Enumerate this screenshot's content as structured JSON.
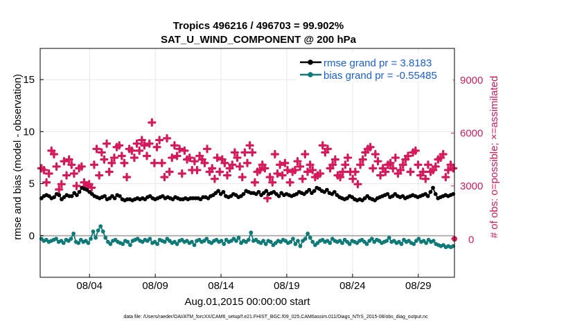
{
  "chart_data": {
    "type": "line",
    "title": "Tropics 496216 / 496703 = 99.902%",
    "subtitle": "SAT_U_WIND_COMPONENT @ 200 hPa",
    "xlabel": "Aug.01,2015 00:00:00 start",
    "ylabel": "rmse and bias (model - observation)",
    "y2label": "# of obs: o=possible; ×=assimilated",
    "footer": "data file: /Users/raeder/DAI/ATM_forcXX/CAM6_setup/f.e21.FHIST_BGC.f09_025.CAM6assim.011/Diags_NTrS_2015-08/obs_diag_output.nc",
    "xlim": [
      0.25,
      31.75
    ],
    "ylim": [
      -4,
      18
    ],
    "y2lim": [
      -2181.8,
      10800
    ],
    "grid": true,
    "legend_position": "top-right",
    "x_ticks": [
      {
        "value": 4,
        "label": "08/04"
      },
      {
        "value": 9,
        "label": "08/09"
      },
      {
        "value": 14,
        "label": "08/14"
      },
      {
        "value": 19,
        "label": "08/19"
      },
      {
        "value": 24,
        "label": "08/24"
      },
      {
        "value": 29,
        "label": "08/29"
      }
    ],
    "y_ticks": [
      {
        "value": 0,
        "label": "0"
      },
      {
        "value": 5,
        "label": "5"
      },
      {
        "value": 10,
        "label": "10"
      },
      {
        "value": 15,
        "label": "15"
      }
    ],
    "y2_ticks": [
      {
        "value": 0,
        "label": "0"
      },
      {
        "value": 3000,
        "label": "3000"
      },
      {
        "value": 6000,
        "label": "6000"
      },
      {
        "value": 9000,
        "label": "9000"
      }
    ],
    "series": [
      {
        "name": "rmse grand pr = 3.8183",
        "color": "#000000",
        "axis": "left",
        "values": [
          3.6,
          3.8,
          3.9,
          3.8,
          3.6,
          3.7,
          4.0,
          3.9,
          3.5,
          3.7,
          3.9,
          3.8,
          3.8,
          4.1,
          3.9,
          4.2,
          4.6,
          4.5,
          4.4,
          4.2,
          4.0,
          3.8,
          3.7,
          3.6,
          3.7,
          3.8,
          3.5,
          3.6,
          3.8,
          3.6,
          3.9,
          3.8,
          3.5,
          3.4,
          3.5,
          3.5,
          3.4,
          3.5,
          3.6,
          3.5,
          3.6,
          3.5,
          3.7,
          3.8,
          3.6,
          3.5,
          3.6,
          3.7,
          3.8,
          3.6,
          3.7,
          3.6,
          3.5,
          3.7,
          3.6,
          3.5,
          3.5,
          3.6,
          3.5,
          3.6,
          3.6,
          3.6,
          3.6,
          3.5,
          3.7,
          3.7,
          3.6,
          3.8,
          3.9,
          4.1,
          4.3,
          4.0,
          4.2,
          3.8,
          3.7,
          3.8,
          4.0,
          3.9,
          3.7,
          3.8,
          4.0,
          4.3,
          4.2,
          4.1,
          4.1,
          4.0,
          4.2,
          3.9,
          4.1,
          4.3,
          4.0,
          4.1,
          4.2,
          4.0,
          3.8,
          4.1,
          3.9,
          4.0,
          3.9,
          3.8,
          3.9,
          4.0,
          4.2,
          4.1,
          4.0,
          4.2,
          4.4,
          4.1,
          4.3,
          4.6,
          4.5,
          4.3,
          4.2,
          4.4,
          4.1,
          4.0,
          4.2,
          3.9,
          3.7,
          3.6,
          3.5,
          3.6,
          3.8,
          3.7,
          3.5,
          3.4,
          3.5,
          3.4,
          3.6,
          3.8,
          3.6,
          3.5,
          3.4,
          3.6,
          3.7,
          3.8,
          3.9,
          4.0,
          3.7,
          3.8,
          4.0,
          3.8,
          3.7,
          3.8,
          3.6,
          3.7,
          3.8,
          3.9,
          3.8,
          3.7,
          3.8,
          3.9,
          4.0,
          3.8,
          4.2,
          4.6,
          4.0,
          3.6,
          3.7,
          3.8,
          3.9,
          3.8,
          3.9,
          4.0
        ]
      },
      {
        "name": "bias grand pr = -0.55485",
        "color": "#0e7b78",
        "axis": "left",
        "values": [
          -0.3,
          -0.5,
          -0.4,
          -0.6,
          -0.5,
          -0.4,
          -0.3,
          -0.6,
          -0.5,
          -0.7,
          -0.4,
          -0.5,
          -0.3,
          0.2,
          -0.6,
          -0.7,
          -0.4,
          -0.6,
          -0.5,
          -0.7,
          -0.3,
          0.4,
          -0.2,
          0.5,
          0.9,
          0.4,
          -0.2,
          -0.6,
          -0.8,
          -0.5,
          -0.4,
          -0.6,
          -0.7,
          -0.8,
          -0.5,
          -0.6,
          -0.9,
          -0.5,
          -0.4,
          -0.3,
          -0.5,
          -0.6,
          -0.4,
          -0.5,
          -0.3,
          -0.7,
          -0.6,
          -0.8,
          -0.4,
          -0.5,
          -0.6,
          -0.3,
          -0.5,
          -0.7,
          -0.6,
          -0.8,
          -0.5,
          -0.4,
          -0.6,
          -0.5,
          -0.7,
          -0.6,
          -0.9,
          -0.5,
          -0.4,
          -0.6,
          -0.5,
          -0.3,
          -0.6,
          -0.7,
          -0.5,
          -0.4,
          -0.6,
          -0.5,
          -0.8,
          -0.4,
          -0.6,
          -0.5,
          -0.3,
          -0.5,
          -0.2,
          -0.7,
          -0.5,
          -0.6,
          -0.4,
          0.3,
          -0.5,
          -0.4,
          -0.6,
          -0.7,
          -0.5,
          -0.8,
          -0.5,
          -0.6,
          -0.9,
          -0.7,
          -0.5,
          -0.6,
          -0.4,
          -0.5,
          -0.7,
          -0.6,
          -0.3,
          -0.8,
          -0.5,
          -1.0,
          -0.5,
          -0.3,
          0.2,
          -0.2,
          -0.6,
          -0.9,
          -0.7,
          -0.5,
          -0.4,
          -0.6,
          -0.5,
          -0.7,
          -0.3,
          -0.5,
          -0.6,
          -0.5,
          -0.7,
          -0.4,
          -0.6,
          -0.8,
          -0.5,
          -0.6,
          -0.7,
          -0.5,
          -0.4,
          -0.6,
          -0.8,
          -0.5,
          -0.3,
          -0.6,
          -0.4,
          -0.5,
          -0.7,
          -0.6,
          -0.5,
          -0.2,
          -0.6,
          -0.5,
          -0.7,
          -0.6,
          -0.8,
          -0.4,
          -0.6,
          -0.5,
          -0.7,
          -0.8,
          -0.5,
          -0.3,
          -0.6,
          -0.5,
          -0.7,
          -0.4,
          -0.6,
          -0.5,
          -0.8,
          -0.9,
          -1.0,
          -0.9,
          -1.1,
          -1.0,
          -1.1,
          -1.0
        ]
      },
      {
        "name": "assimilated",
        "color": "#d6195a",
        "axis": "right",
        "values": [
          4000,
          3900,
          3200,
          3700,
          5000,
          4800,
          4100,
          2800,
          3100,
          4400,
          3600,
          4500,
          4200,
          3700,
          3000,
          4000,
          4100,
          3200,
          3000,
          3100,
          2900,
          4200,
          5100,
          3600,
          4900,
          4500,
          5400,
          3800,
          4300,
          4600,
          5200,
          5300,
          4700,
          4300,
          3500,
          5100,
          5000,
          4600,
          5400,
          5000,
          5600,
          5300,
          4700,
          5400,
          6600,
          4300,
          5200,
          5600,
          4300,
          3500,
          5700,
          3800,
          4600,
          5300,
          4700,
          5100,
          3700,
          5000,
          4500,
          4600,
          3900,
          4400,
          3900,
          4700,
          4500,
          4300,
          5100,
          3800,
          4000,
          3400,
          4600,
          3800,
          4500,
          4300,
          3600,
          4000,
          4200,
          4900,
          4600,
          4100,
          3500,
          4900,
          4300,
          5300,
          4900,
          3200,
          3800,
          3900,
          4200,
          4000,
          2300,
          3500,
          3200,
          4800,
          3700,
          4200,
          3600,
          4300,
          3900,
          3200,
          3800,
          3900,
          4400,
          4100,
          3400,
          4800,
          3800,
          4200,
          3900,
          3500,
          3600,
          3700,
          5300,
          4900,
          5100,
          4000,
          4200,
          4500,
          3600,
          3500,
          3800,
          4200,
          4600,
          3800,
          3400,
          3800,
          3100,
          4200,
          4500,
          4900,
          5100,
          5200,
          4000,
          4800,
          4400,
          3600,
          4000,
          3800,
          4200,
          4300,
          4000,
          4600,
          3700,
          3900,
          4200,
          4500,
          4700,
          3800,
          4900,
          5000,
          4200,
          3600,
          3800,
          3400,
          4200,
          3800,
          3900,
          4100,
          4500,
          4600,
          4800,
          3500,
          3900,
          4200,
          4000
        ]
      }
    ],
    "annotations": [
      "0"
    ]
  }
}
